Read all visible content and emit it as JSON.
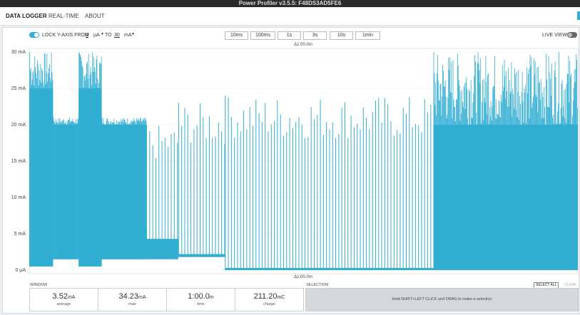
{
  "window_title": "Power Profiler v3.5.5: F48DS3AD5FE6",
  "nav": [
    "DATA LOGGER",
    "REAL-TIME",
    "ABOUT"
  ],
  "toolbar": {
    "lock_label": "LOCK Y-AXIS FROM",
    "from_value": "0",
    "from_unit": "µA",
    "to_label": "TO",
    "to_value": "30",
    "to_unit": "mA",
    "spans": [
      "10ms",
      "100ms",
      "1s",
      "3s",
      "10s",
      "1min"
    ],
    "live_view": "LIVE VIEW"
  },
  "chart_data": {
    "type": "regions",
    "span_label": "Δ1:00.0m",
    "color": "#33aed3",
    "xlim": [
      0,
      60
    ],
    "ylim": [
      0,
      30
    ],
    "yticks": [
      {
        "value": 0,
        "label": "0 µA"
      },
      {
        "value": 5,
        "label": "5 mA"
      },
      {
        "value": 10,
        "label": "10 mA"
      },
      {
        "value": 15,
        "label": "15 mA"
      },
      {
        "value": 20,
        "label": "20 mA"
      },
      {
        "value": 25,
        "label": "25 mA"
      },
      {
        "value": 30,
        "label": "30 mA"
      }
    ],
    "grid": true,
    "regions": [
      {
        "from": 0,
        "to": 2.6,
        "base": 0.5,
        "level": 25,
        "peak": 30,
        "dense": true
      },
      {
        "from": 2.6,
        "to": 5.4,
        "base": 1.5,
        "level": 20,
        "peak": 21,
        "dense": true
      },
      {
        "from": 5.4,
        "to": 7.9,
        "base": 0.5,
        "level": 25,
        "peak": 30,
        "dense": true
      },
      {
        "from": 7.9,
        "to": 12.8,
        "base": 1.5,
        "level": 20,
        "peak": 21,
        "dense": true
      },
      {
        "from": 12.8,
        "to": 16.3,
        "base": 1.5,
        "level": 4.3,
        "peak": 20,
        "dense": false
      },
      {
        "from": 16.3,
        "to": 21.4,
        "base": 1.8,
        "level": 2.2,
        "peak": 23,
        "dense": false
      },
      {
        "from": 21.4,
        "to": 44.2,
        "base": 0,
        "level": 0.3,
        "peak": 24,
        "dense": false
      },
      {
        "from": 44.2,
        "to": 60,
        "base": 0,
        "level": 20,
        "peak": 30,
        "dense": true
      }
    ]
  },
  "window": {
    "title": "WINDOW",
    "stats": [
      {
        "value": "3.52",
        "unit": "mA",
        "label": "average"
      },
      {
        "value": "34.23",
        "unit": "mA",
        "label": "max"
      },
      {
        "value": "1:00.0",
        "unit": "m",
        "label": "time"
      },
      {
        "value": "211.20",
        "unit": "mC",
        "label": "charge"
      }
    ]
  },
  "selection": {
    "title": "SELECTION",
    "select_all": "SELECT ALL",
    "clear": "CLEAR",
    "hint": "Hold SHIFT+LEFT CLICK and DRAG to make a selection"
  }
}
